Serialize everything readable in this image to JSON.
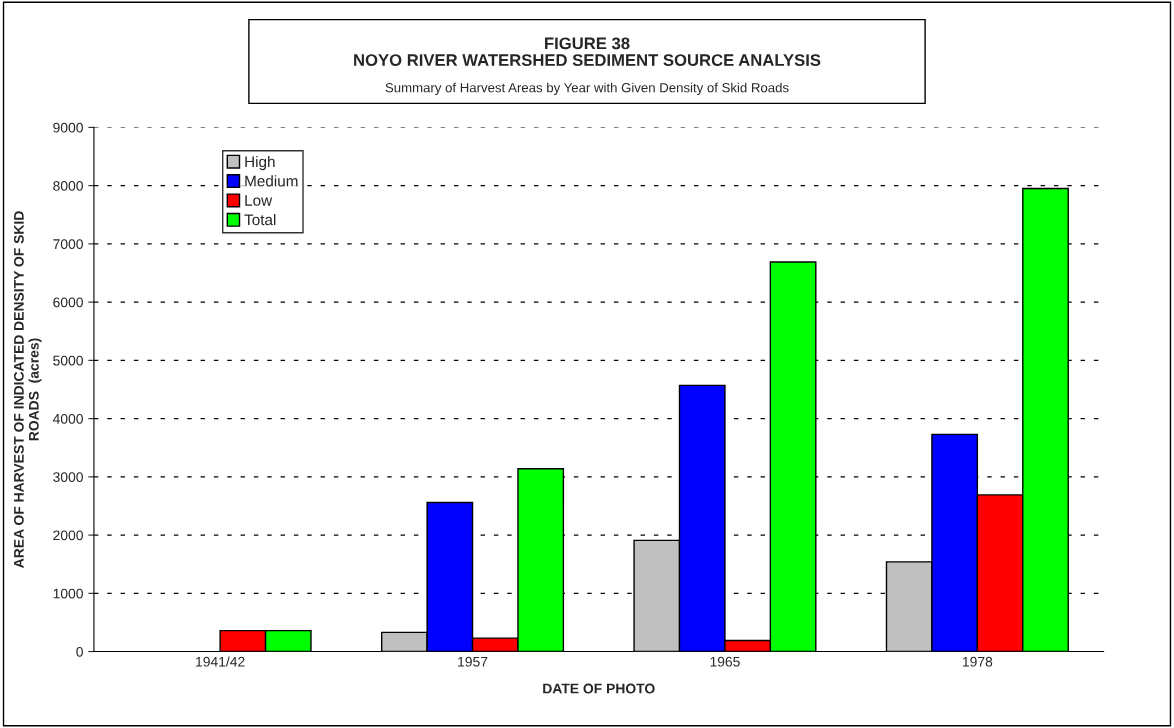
{
  "chart_data": {
    "type": "bar",
    "title": "FIGURE 38\nNOYO RIVER WATERSHED SEDIMENT SOURCE ANALYSIS",
    "subtitle": "Summary of Harvest Areas by Year with Given Density of Skid Roads",
    "xlabel": "DATE OF PHOTO",
    "ylabel": "AREA OF HARVEST OF INDICATED DENSITY OF SKID\nROADS  (acres)",
    "categories": [
      "1941/42",
      "1957",
      "1965",
      "1978"
    ],
    "series": [
      {
        "name": "High",
        "color": "#c0c0c0",
        "values": [
          0,
          330,
          1910,
          1540
        ]
      },
      {
        "name": "Medium",
        "color": "#0000ff",
        "values": [
          0,
          2560,
          4570,
          3730
        ]
      },
      {
        "name": "Low",
        "color": "#ff0000",
        "values": [
          360,
          230,
          190,
          2690
        ]
      },
      {
        "name": "Total",
        "color": "#00ff00",
        "values": [
          360,
          3140,
          6690,
          7950
        ]
      }
    ],
    "ylim": [
      0,
      9000
    ],
    "yticks": [
      0,
      1000,
      2000,
      3000,
      4000,
      5000,
      6000,
      7000,
      8000,
      9000
    ],
    "grid": "y",
    "legend": "top left",
    "line_style": "dashed"
  }
}
